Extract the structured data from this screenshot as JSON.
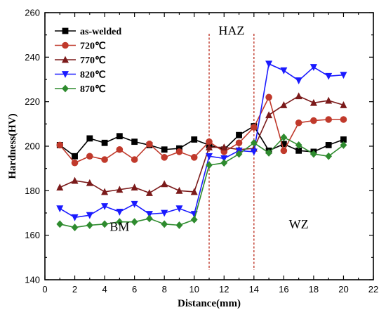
{
  "chart_data": {
    "type": "line",
    "xlabel": "Distance(mm)",
    "ylabel": "Hardness(HV)",
    "xlim": [
      0,
      22
    ],
    "ylim": [
      140,
      260
    ],
    "x_ticks": [
      "0",
      "2",
      "4",
      "6",
      "8",
      "10",
      "12",
      "14",
      "16",
      "18",
      "20",
      "22"
    ],
    "y_ticks": [
      "140",
      "160",
      "180",
      "200",
      "220",
      "240",
      "260"
    ],
    "x": [
      1,
      2,
      3,
      4,
      5,
      6,
      7,
      8,
      9,
      10,
      11,
      12,
      13,
      14,
      15,
      16,
      17,
      18,
      19,
      20
    ],
    "legend_position": "top-left",
    "series": [
      {
        "name": "as-welded",
        "color": "#000000",
        "marker": "square",
        "values": [
          200.5,
          195.5,
          203.5,
          201.5,
          204.5,
          202,
          200.5,
          198.5,
          199,
          203,
          200.5,
          198.5,
          205,
          209,
          198,
          201,
          198,
          197.5,
          200.5,
          203
        ]
      },
      {
        "name": "720℃",
        "color": "#c0392b",
        "marker": "circle",
        "values": [
          200.5,
          192.5,
          195.5,
          194,
          198.5,
          194,
          201,
          195,
          197.5,
          195,
          202,
          197.5,
          201.5,
          208.5,
          222,
          198,
          210.5,
          211.5,
          212,
          212
        ]
      },
      {
        "name": "770℃",
        "color": "#7b1a1a",
        "marker": "triangle-up",
        "values": [
          181.5,
          184.5,
          183.5,
          179.5,
          180.5,
          181.5,
          179,
          183,
          180,
          179.5,
          199.5,
          199.5,
          198.5,
          199,
          214,
          218.5,
          222.5,
          219.5,
          220.5,
          218.5
        ]
      },
      {
        "name": "820℃",
        "color": "#1a1aff",
        "marker": "triangle-down",
        "values": [
          172,
          168,
          169,
          173,
          170.5,
          174,
          169.5,
          170,
          172,
          169.5,
          195.5,
          194.5,
          198,
          197.5,
          237,
          234,
          229.5,
          235.5,
          231.5,
          232
        ]
      },
      {
        "name": "870℃",
        "color": "#2e8b2e",
        "marker": "diamond",
        "values": [
          165,
          163.5,
          164.5,
          165,
          166,
          166,
          167.5,
          165,
          164.5,
          167,
          191.5,
          192.5,
          196.5,
          201.5,
          197,
          204,
          200.5,
          196.5,
          195.5,
          200.5
        ]
      }
    ],
    "dividers": [
      11,
      14
    ],
    "region_labels": [
      {
        "text": "BM",
        "x": 5,
        "y": 162
      },
      {
        "text": "HAZ",
        "x": 12.5,
        "y": 250
      },
      {
        "text": "WZ",
        "x": 17,
        "y": 163
      }
    ]
  }
}
